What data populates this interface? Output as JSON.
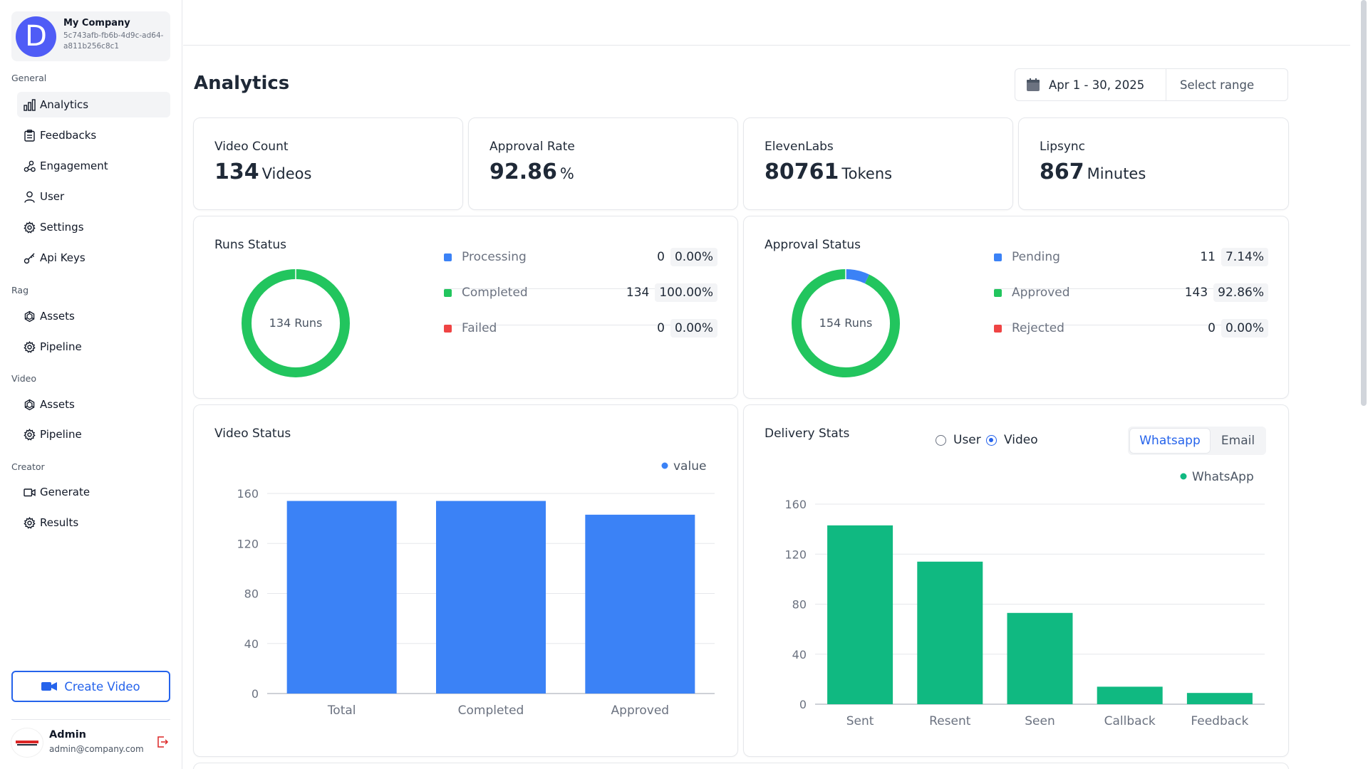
{
  "org": {
    "avatar_letter": "D",
    "name": "My Company",
    "id": "5c743afb-fb6b-4d9c-ad64-a811b256c8c1"
  },
  "sidebar": {
    "sections": [
      "General",
      "Rag",
      "Video",
      "Creator"
    ],
    "items": [
      {
        "label": "Analytics",
        "icon": "bar-chart-icon"
      },
      {
        "label": "Feedbacks",
        "icon": "clipboard-icon"
      },
      {
        "label": "Engagement",
        "icon": "share-nodes-icon"
      },
      {
        "label": "User",
        "icon": "user-icon"
      },
      {
        "label": "Settings",
        "icon": "gear-icon"
      },
      {
        "label": "Api Keys",
        "icon": "key-icon"
      },
      {
        "label": "Assets",
        "icon": "openai-icon"
      },
      {
        "label": "Pipeline",
        "icon": "gear-icon"
      },
      {
        "label": "Assets",
        "icon": "openai-icon"
      },
      {
        "label": "Pipeline",
        "icon": "gear-icon"
      },
      {
        "label": "Generate",
        "icon": "video-camera-icon"
      },
      {
        "label": "Results",
        "icon": "gear-icon"
      }
    ],
    "create_label": "Create Video",
    "admin_name": "Admin",
    "admin_email": "admin@company.com"
  },
  "page": {
    "title": "Analytics",
    "date_range": "Apr 1 - 30, 2025",
    "select_range": "Select range"
  },
  "stats": [
    {
      "label": "Video Count",
      "value": "134",
      "unit": "Videos"
    },
    {
      "label": "Approval Rate",
      "value": "92.86",
      "unit": "%"
    },
    {
      "label": "ElevenLabs",
      "value": "80761",
      "unit": "Tokens"
    },
    {
      "label": "Lipsync",
      "value": "867",
      "unit": "Minutes"
    }
  ],
  "runs_status": {
    "title": "Runs Status",
    "center_label": "134 Runs",
    "rows": [
      {
        "name": "Processing",
        "count": "0",
        "pct": "0.00%",
        "value": 0,
        "color": "#3b82f6"
      },
      {
        "name": "Completed",
        "count": "134",
        "pct": "100.00%",
        "value": 134,
        "color": "#22c55e"
      },
      {
        "name": "Failed",
        "count": "0",
        "pct": "0.00%",
        "value": 0,
        "color": "#ef4444"
      }
    ]
  },
  "approval_status": {
    "title": "Approval Status",
    "center_label": "154 Runs",
    "rows": [
      {
        "name": "Pending",
        "count": "11",
        "pct": "7.14%",
        "value": 11,
        "color": "#3b82f6"
      },
      {
        "name": "Approved",
        "count": "143",
        "pct": "92.86%",
        "value": 143,
        "color": "#22c55e"
      },
      {
        "name": "Rejected",
        "count": "0",
        "pct": "0.00%",
        "value": 0,
        "color": "#ef4444"
      }
    ]
  },
  "video_status": {
    "title": "Video Status"
  },
  "delivery_stats": {
    "title": "Delivery Stats",
    "radios": [
      {
        "label": "User",
        "checked": false
      },
      {
        "label": "Video",
        "checked": true
      }
    ],
    "tabs": [
      {
        "label": "Whatsapp",
        "active": true
      },
      {
        "label": "Email",
        "active": false
      }
    ]
  },
  "chart_data": [
    {
      "type": "bar",
      "categories": [
        "Total",
        "Completed",
        "Approved"
      ],
      "series": [
        {
          "name": "value",
          "values": [
            154,
            154,
            143
          ],
          "color": "#3b82f6"
        }
      ],
      "ylim": [
        0,
        160
      ],
      "yticks": [
        0,
        40,
        80,
        120,
        160
      ],
      "grid": true,
      "legend": "top-right"
    },
    {
      "type": "bar",
      "categories": [
        "Sent",
        "Resent",
        "Seen",
        "Callback",
        "Feedback"
      ],
      "series": [
        {
          "name": "WhatsApp",
          "values": [
            143,
            114,
            73,
            14,
            9
          ],
          "color": "#10b981"
        }
      ],
      "ylim": [
        0,
        160
      ],
      "yticks": [
        0,
        40,
        80,
        120,
        160
      ],
      "grid": true,
      "legend": "top-right"
    }
  ]
}
